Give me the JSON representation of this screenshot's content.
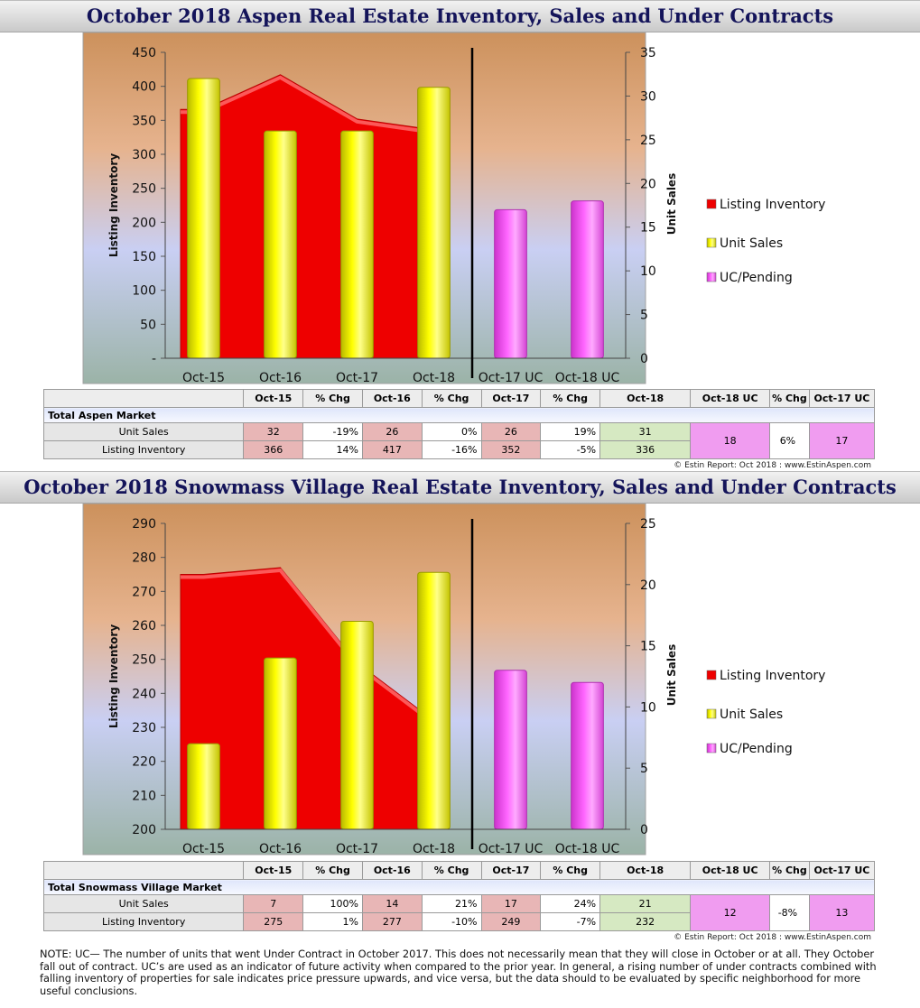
{
  "page": {
    "aspen_title": "October 2018 Aspen Real Estate Inventory, Sales and Under Contracts",
    "snowmass_title": "October 2018 Snowmass Village Real Estate Inventory, Sales and Under Contracts",
    "credit": "© Estin Report: Oct 2018 : www.EstinAspen.com",
    "note": "NOTE: UC— The number of units that went Under Contract in October 2017. This does not necessarily mean that they will close in October or at all. They October fall out of contract. UC’s are used as an indicator of future activity when compared to the prior year. In general, a rising number of under contracts combined with falling inventory of properties for sale indicates price pressure upwards, and vice versa, but the data should to be evaluated by specific neighborhood for more useful conclusions."
  },
  "colors": {
    "listing_inventory": "#ee0000",
    "unit_sales": "#ffff00",
    "uc_pending": "#ff66ff"
  },
  "chart_data": [
    {
      "type": "bar",
      "categories": [
        "Oct-15",
        "Oct-16",
        "Oct-17",
        "Oct-18",
        "Oct-17 UC",
        "Oct-18 UC"
      ],
      "ylabel": "Listing Inventory",
      "y2label": "Unit Sales",
      "ylim": [
        0,
        450
      ],
      "y2lim": [
        0,
        35
      ],
      "left_ticks": [
        "-",
        "50",
        "100",
        "150",
        "200",
        "250",
        "300",
        "350",
        "400",
        "450"
      ],
      "right_ticks": [
        "0",
        "5",
        "10",
        "15",
        "20",
        "25",
        "30",
        "35"
      ],
      "series": [
        {
          "name": "Listing Inventory",
          "type": "area",
          "axis": "left",
          "values": [
            366,
            417,
            352,
            336,
            null,
            null
          ]
        },
        {
          "name": "Unit Sales",
          "type": "bar",
          "axis": "right",
          "values": [
            32,
            26,
            26,
            31,
            null,
            null
          ]
        },
        {
          "name": "UC/Pending",
          "type": "bar",
          "axis": "right",
          "values": [
            null,
            null,
            null,
            null,
            17,
            18
          ]
        }
      ],
      "legend": "right",
      "divider_after": "Oct-18"
    },
    {
      "type": "bar",
      "categories": [
        "Oct-15",
        "Oct-16",
        "Oct-17",
        "Oct-18",
        "Oct-17 UC",
        "Oct-18 UC"
      ],
      "ylabel": "Listing Inventory",
      "y2label": "Unit Sales",
      "ylim": [
        200,
        290
      ],
      "y2lim": [
        0,
        25
      ],
      "left_ticks": [
        "200",
        "210",
        "220",
        "230",
        "240",
        "250",
        "260",
        "270",
        "280",
        "290"
      ],
      "right_ticks": [
        "0",
        "5",
        "10",
        "15",
        "20",
        "25"
      ],
      "series": [
        {
          "name": "Listing Inventory",
          "type": "area",
          "axis": "left",
          "values": [
            275,
            277,
            249,
            232,
            null,
            null
          ]
        },
        {
          "name": "Unit Sales",
          "type": "bar",
          "axis": "right",
          "values": [
            7,
            14,
            17,
            21,
            null,
            null
          ]
        },
        {
          "name": "UC/Pending",
          "type": "bar",
          "axis": "right",
          "values": [
            null,
            null,
            null,
            null,
            13,
            12
          ]
        }
      ],
      "legend": "right",
      "divider_after": "Oct-18"
    }
  ],
  "tables": {
    "headers": [
      "Oct-15",
      "% Chg",
      "Oct-16",
      "% Chg",
      "Oct-17",
      "% Chg",
      "Oct-18",
      "Oct-18 UC",
      "% Chg",
      "Oct-17 UC"
    ],
    "aspen": {
      "market": "Total Aspen Market",
      "rows": [
        {
          "label": "Unit Sales",
          "cells": [
            "32",
            "-19%",
            "26",
            "0%",
            "26",
            "19%",
            "31",
            "18",
            "6%",
            "17"
          ]
        },
        {
          "label": "Listing Inventory",
          "cells": [
            "366",
            "14%",
            "417",
            "-16%",
            "352",
            "-5%",
            "336",
            "",
            "",
            ""
          ]
        }
      ]
    },
    "snowmass": {
      "market": "Total Snowmass Village Market",
      "rows": [
        {
          "label": "Unit Sales",
          "cells": [
            "7",
            "100%",
            "14",
            "21%",
            "17",
            "24%",
            "21",
            "12",
            "-8%",
            "13"
          ]
        },
        {
          "label": "Listing Inventory",
          "cells": [
            "275",
            "1%",
            "277",
            "-10%",
            "249",
            "-7%",
            "232",
            "",
            "",
            ""
          ]
        }
      ]
    }
  }
}
